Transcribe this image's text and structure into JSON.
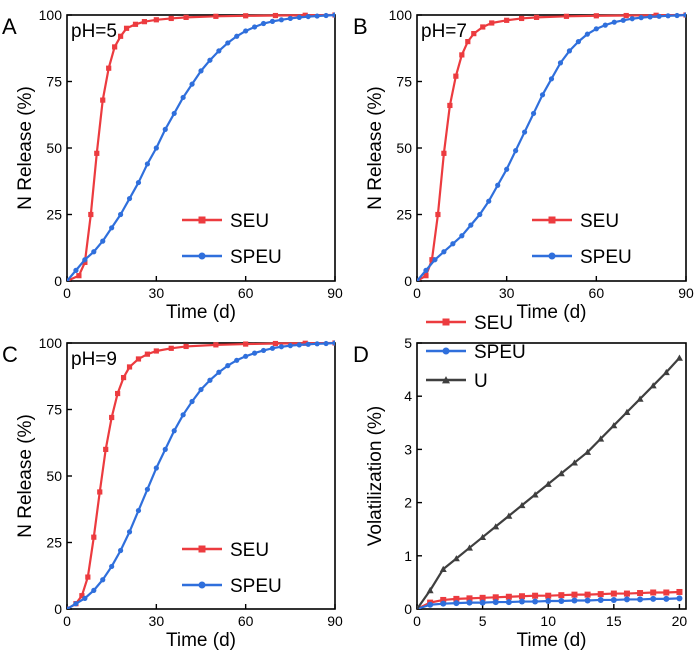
{
  "chart_data": [
    {
      "panel": "A",
      "annotation": "pH=5",
      "type": "line",
      "xlabel": "Time (d)",
      "ylabel": "N Release (%)",
      "xlim": [
        0,
        90
      ],
      "ylim": [
        0,
        100
      ],
      "xticks": [
        0,
        30,
        60,
        90
      ],
      "yticks": [
        0,
        25,
        50,
        75,
        100
      ],
      "legend_position": "bottom-right",
      "series": [
        {
          "name": "SEU",
          "color": "#ec3b3f",
          "marker": "square",
          "x": [
            0,
            4,
            6,
            8,
            10,
            12,
            14,
            16,
            18,
            20,
            23,
            26,
            30,
            35,
            40,
            50,
            60,
            70,
            80,
            90
          ],
          "y": [
            0,
            2,
            7,
            25,
            48,
            68,
            80,
            88,
            92,
            95,
            96.5,
            97.5,
            98.2,
            98.7,
            99.1,
            99.5,
            99.7,
            99.8,
            99.9,
            100
          ]
        },
        {
          "name": "SPEU",
          "color": "#2f6fdc",
          "marker": "circle",
          "x": [
            0,
            3,
            6,
            9,
            12,
            15,
            18,
            21,
            24,
            27,
            30,
            33,
            36,
            39,
            42,
            45,
            48,
            51,
            54,
            57,
            60,
            63,
            66,
            69,
            72,
            75,
            78,
            81,
            84,
            87,
            90
          ],
          "y": [
            0,
            4,
            8,
            11,
            15,
            20,
            25,
            31,
            37,
            44,
            50,
            57,
            63,
            69,
            74,
            79,
            83,
            86.5,
            89.5,
            92,
            94,
            95.5,
            96.8,
            97.6,
            98.2,
            98.7,
            99.1,
            99.4,
            99.6,
            99.8,
            100
          ]
        }
      ]
    },
    {
      "panel": "B",
      "annotation": "pH=7",
      "type": "line",
      "xlabel": "Time (d)",
      "ylabel": "N Release (%)",
      "xlim": [
        0,
        90
      ],
      "ylim": [
        0,
        100
      ],
      "xticks": [
        0,
        30,
        60,
        90
      ],
      "yticks": [
        0,
        25,
        50,
        75,
        100
      ],
      "legend_position": "bottom-right",
      "series": [
        {
          "name": "SEU",
          "color": "#ec3b3f",
          "marker": "square",
          "x": [
            0,
            3,
            5,
            7,
            9,
            11,
            13,
            15,
            17,
            19,
            22,
            25,
            30,
            35,
            40,
            50,
            60,
            70,
            80,
            90
          ],
          "y": [
            0,
            2,
            8,
            25,
            48,
            66,
            77,
            85,
            90,
            93,
            95.5,
            97,
            98,
            98.7,
            99.1,
            99.5,
            99.7,
            99.8,
            99.9,
            100
          ]
        },
        {
          "name": "SPEU",
          "color": "#2f6fdc",
          "marker": "circle",
          "x": [
            0,
            3,
            6,
            9,
            12,
            15,
            18,
            21,
            24,
            27,
            30,
            33,
            36,
            39,
            42,
            45,
            48,
            51,
            54,
            57,
            60,
            63,
            66,
            69,
            72,
            75,
            78,
            81,
            84,
            87,
            90
          ],
          "y": [
            0,
            4,
            8,
            11,
            14,
            17,
            21,
            25,
            30,
            36,
            42,
            49,
            56,
            63,
            70,
            76,
            82,
            86.5,
            90,
            92.8,
            94.8,
            96.2,
            97.3,
            98,
            98.6,
            99,
            99.3,
            99.5,
            99.7,
            99.8,
            100
          ]
        }
      ]
    },
    {
      "panel": "C",
      "annotation": "pH=9",
      "type": "line",
      "xlabel": "Time (d)",
      "ylabel": "N Release (%)",
      "xlim": [
        0,
        90
      ],
      "ylim": [
        0,
        100
      ],
      "xticks": [
        0,
        30,
        60,
        90
      ],
      "yticks": [
        0,
        25,
        50,
        75,
        100
      ],
      "legend_position": "bottom-right",
      "series": [
        {
          "name": "SEU",
          "color": "#ec3b3f",
          "marker": "square",
          "x": [
            0,
            3,
            5,
            7,
            9,
            11,
            13,
            15,
            17,
            19,
            21,
            24,
            27,
            30,
            35,
            40,
            50,
            60,
            70,
            80,
            90
          ],
          "y": [
            0,
            2,
            5,
            12,
            27,
            44,
            60,
            72,
            81,
            87,
            91,
            94,
            95.8,
            97,
            98,
            98.7,
            99.3,
            99.6,
            99.8,
            99.9,
            100
          ]
        },
        {
          "name": "SPEU",
          "color": "#2f6fdc",
          "marker": "circle",
          "x": [
            0,
            3,
            6,
            9,
            12,
            15,
            18,
            21,
            24,
            27,
            30,
            33,
            36,
            39,
            42,
            45,
            48,
            51,
            54,
            57,
            60,
            63,
            66,
            69,
            72,
            75,
            78,
            81,
            84,
            87,
            90
          ],
          "y": [
            0,
            2,
            4,
            7,
            11,
            16,
            22,
            29,
            37,
            45,
            53,
            60,
            67,
            73,
            78,
            82.5,
            86,
            89,
            91.5,
            93.5,
            95,
            96.2,
            97.2,
            98,
            98.6,
            99,
            99.3,
            99.5,
            99.7,
            99.8,
            100
          ]
        }
      ]
    },
    {
      "panel": "D",
      "annotation": "",
      "type": "line",
      "xlabel": "Time (d)",
      "ylabel": "Volatilization (%)",
      "xlim": [
        0,
        20.5
      ],
      "ylim": [
        0,
        5
      ],
      "xticks": [
        0,
        5,
        10,
        15,
        20
      ],
      "yticks": [
        0,
        1,
        2,
        3,
        4,
        5
      ],
      "legend_position": "top-left",
      "series": [
        {
          "name": "SEU",
          "color": "#ec3b3f",
          "marker": "square",
          "x": [
            0,
            1,
            2,
            3,
            4,
            5,
            6,
            7,
            8,
            9,
            10,
            11,
            12,
            13,
            14,
            15,
            16,
            17,
            18,
            19,
            20
          ],
          "y": [
            0,
            0.12,
            0.17,
            0.19,
            0.2,
            0.21,
            0.22,
            0.23,
            0.24,
            0.25,
            0.25,
            0.26,
            0.27,
            0.27,
            0.28,
            0.29,
            0.29,
            0.3,
            0.31,
            0.31,
            0.32
          ]
        },
        {
          "name": "SPEU",
          "color": "#2f6fdc",
          "marker": "circle",
          "x": [
            0,
            1,
            2,
            3,
            4,
            5,
            6,
            7,
            8,
            9,
            10,
            11,
            12,
            13,
            14,
            15,
            16,
            17,
            18,
            19,
            20
          ],
          "y": [
            0,
            0.08,
            0.1,
            0.11,
            0.12,
            0.12,
            0.13,
            0.13,
            0.14,
            0.14,
            0.15,
            0.15,
            0.16,
            0.16,
            0.17,
            0.17,
            0.18,
            0.18,
            0.19,
            0.19,
            0.2
          ]
        },
        {
          "name": "U",
          "color": "#3f3f3f",
          "marker": "triangle",
          "x": [
            0,
            1,
            2,
            3,
            4,
            5,
            6,
            7,
            8,
            9,
            10,
            11,
            12,
            13,
            14,
            15,
            16,
            17,
            18,
            19,
            20
          ],
          "y": [
            0,
            0.35,
            0.75,
            0.95,
            1.15,
            1.35,
            1.55,
            1.75,
            1.95,
            2.15,
            2.35,
            2.55,
            2.75,
            2.95,
            3.2,
            3.45,
            3.7,
            3.95,
            4.2,
            4.45,
            4.72
          ]
        }
      ]
    }
  ]
}
